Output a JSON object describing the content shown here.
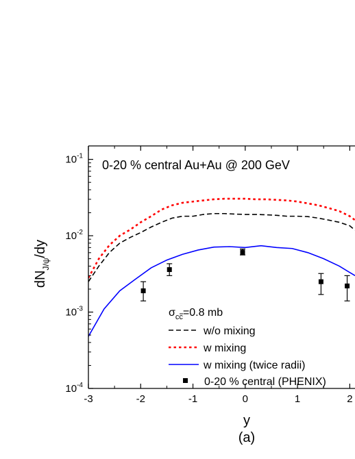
{
  "chart_data": {
    "type": "line",
    "panel_label": "(a)",
    "annotation": "0-20 % central Au+Au @ 200 GeV",
    "xlabel": "y",
    "ylabel": {
      "main": "dN",
      "sub": "J/ψ",
      "tail": "/dy"
    },
    "x_ticks": [
      "-3",
      "-2",
      "-1",
      "0",
      "1",
      "2"
    ],
    "y_ticks": [
      {
        "value": 0.0001,
        "base": "10",
        "exp": "-4"
      },
      {
        "value": 0.001,
        "base": "10",
        "exp": "-3"
      },
      {
        "value": 0.01,
        "base": "10",
        "exp": "-2"
      },
      {
        "value": 0.1,
        "base": "10",
        "exp": "-1"
      }
    ],
    "xlim": [
      -3,
      2.1
    ],
    "ylim": [
      0.0001,
      0.15
    ],
    "y_scale": "log",
    "sigma_label": {
      "sym": "σ",
      "sub": "cc",
      "tail": "=0.8 mb"
    },
    "legend_position": "lower-right",
    "series": [
      {
        "name": "w/o mixing",
        "style": "dashed",
        "color": "#000000",
        "x": [
          -3.0,
          -2.8,
          -2.6,
          -2.4,
          -2.2,
          -2.0,
          -1.8,
          -1.6,
          -1.4,
          -1.2,
          -1.0,
          -0.8,
          -0.6,
          -0.4,
          -0.2,
          0.0,
          0.2,
          0.4,
          0.6,
          0.8,
          1.0,
          1.2,
          1.4,
          1.6,
          1.8,
          2.0,
          2.1
        ],
        "y": [
          0.0025,
          0.004,
          0.006,
          0.008,
          0.0095,
          0.011,
          0.013,
          0.015,
          0.017,
          0.018,
          0.018,
          0.019,
          0.0195,
          0.0195,
          0.0192,
          0.019,
          0.019,
          0.0188,
          0.0185,
          0.018,
          0.018,
          0.0178,
          0.017,
          0.016,
          0.015,
          0.0135,
          0.0118
        ]
      },
      {
        "name": "w mixing",
        "style": "dotted",
        "color": "#ff0000",
        "x": [
          -3.0,
          -2.8,
          -2.6,
          -2.4,
          -2.2,
          -2.0,
          -1.8,
          -1.6,
          -1.4,
          -1.2,
          -1.0,
          -0.8,
          -0.6,
          -0.4,
          -0.2,
          0.0,
          0.2,
          0.4,
          0.6,
          0.8,
          1.0,
          1.2,
          1.4,
          1.6,
          1.8,
          2.0,
          2.1
        ],
        "y": [
          0.0028,
          0.005,
          0.0075,
          0.01,
          0.012,
          0.015,
          0.018,
          0.022,
          0.025,
          0.027,
          0.028,
          0.029,
          0.03,
          0.0305,
          0.0305,
          0.0305,
          0.03,
          0.03,
          0.0295,
          0.029,
          0.028,
          0.0265,
          0.025,
          0.023,
          0.021,
          0.018,
          0.016
        ]
      },
      {
        "name": "w mixing (twice radii)",
        "style": "solid",
        "color": "#0000ff",
        "x": [
          -3.0,
          -2.7,
          -2.4,
          -2.1,
          -1.8,
          -1.5,
          -1.2,
          -0.9,
          -0.6,
          -0.3,
          0.0,
          0.3,
          0.6,
          0.9,
          1.2,
          1.5,
          1.8,
          2.1
        ],
        "y": [
          0.00048,
          0.0011,
          0.0019,
          0.0027,
          0.0038,
          0.0048,
          0.0057,
          0.0065,
          0.0071,
          0.0072,
          0.007,
          0.0074,
          0.007,
          0.0068,
          0.006,
          0.005,
          0.004,
          0.003
        ]
      },
      {
        "name": "0-20 % central (PHENIX)",
        "style": "markers",
        "color": "#000000",
        "x": [
          -1.95,
          -1.45,
          -0.05,
          1.45,
          1.95
        ],
        "y": [
          0.0019,
          0.0036,
          0.0061,
          0.0025,
          0.0022
        ],
        "err_low": [
          0.0014,
          0.003,
          0.0056,
          0.0017,
          0.0014
        ],
        "err_high": [
          0.0025,
          0.0043,
          0.0067,
          0.0032,
          0.003
        ]
      }
    ]
  }
}
